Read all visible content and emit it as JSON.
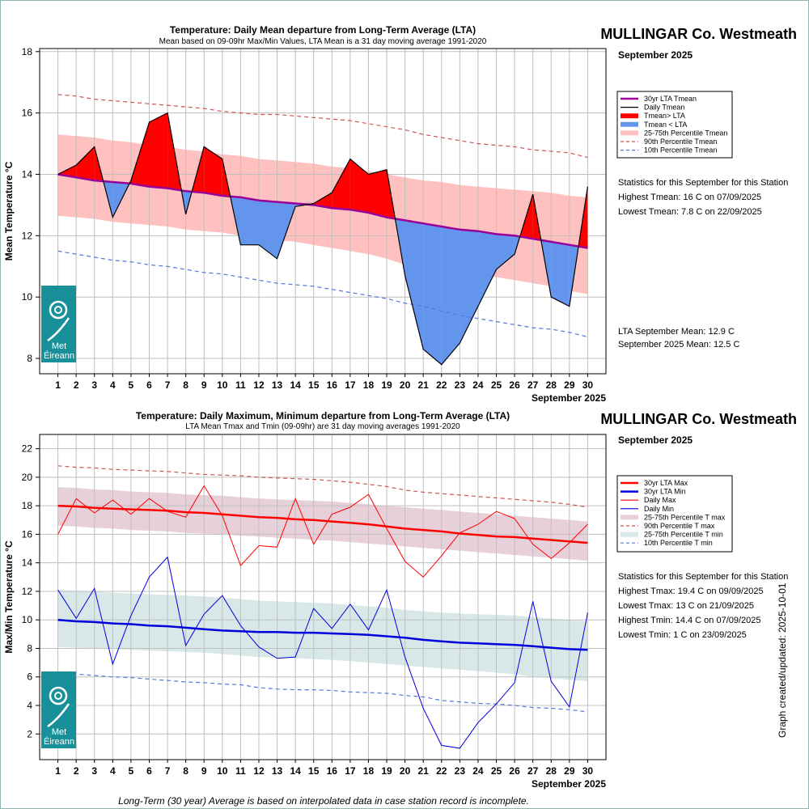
{
  "footer": {
    "note": "Long-Term (30 year) Average is based on interpolated data in case station record is incomplete.",
    "created": "Graph created/updated:  2025-10-01"
  },
  "logo": {
    "line1": "Met",
    "line2": "Éireann"
  },
  "chart_data": [
    {
      "type": "area",
      "title": "Temperature: Daily Mean departure from Long-Term Average (LTA)",
      "subtitle": "Mean based on 09-09hr Max/Min Values, LTA Mean is a 31 day moving average 1991-2020",
      "station": "MULLINGAR Co. Westmeath",
      "month": "September 2025",
      "xlabel": "September 2025",
      "ylabel": "Mean Temperature °C",
      "xlim": [
        0,
        31
      ],
      "ylim": [
        7.5,
        18.1
      ],
      "yticks": [
        8,
        10,
        12,
        14,
        16,
        18
      ],
      "grid": true,
      "x": [
        1,
        2,
        3,
        4,
        5,
        6,
        7,
        8,
        9,
        10,
        11,
        12,
        13,
        14,
        15,
        16,
        17,
        18,
        19,
        20,
        21,
        22,
        23,
        24,
        25,
        26,
        27,
        28,
        29,
        30
      ],
      "series": [
        {
          "name": "30yr LTA Tmean",
          "color": "#990099",
          "values": [
            14.0,
            13.9,
            13.8,
            13.75,
            13.7,
            13.6,
            13.55,
            13.45,
            13.4,
            13.3,
            13.25,
            13.15,
            13.1,
            13.05,
            13.0,
            12.9,
            12.85,
            12.75,
            12.6,
            12.5,
            12.4,
            12.3,
            12.2,
            12.15,
            12.05,
            12.0,
            11.9,
            11.8,
            11.7,
            11.6
          ]
        },
        {
          "name": "Daily Tmean",
          "color": "#000000",
          "values": [
            14.0,
            14.3,
            14.9,
            12.6,
            13.8,
            15.7,
            16.0,
            12.7,
            14.9,
            14.5,
            11.7,
            11.7,
            11.25,
            12.95,
            13.05,
            13.4,
            14.5,
            14.0,
            14.15,
            10.7,
            8.3,
            7.8,
            8.5,
            9.7,
            10.9,
            11.4,
            13.35,
            10.0,
            9.7,
            13.6
          ]
        },
        {
          "name": "Tmean> LTA",
          "color": "#ff0000"
        },
        {
          "name": "Tmean < LTA",
          "color": "#6495ed"
        },
        {
          "name": "25-75th Percentile Tmean",
          "color": "#ffc0c0",
          "lower": [
            12.65,
            12.6,
            12.55,
            12.45,
            12.4,
            12.35,
            12.3,
            12.2,
            12.15,
            12.1,
            12.0,
            11.95,
            11.85,
            11.8,
            11.7,
            11.6,
            11.5,
            11.4,
            11.25,
            11.05,
            10.95,
            10.85,
            10.8,
            10.75,
            10.65,
            10.55,
            10.45,
            10.35,
            10.2,
            10.1
          ],
          "upper": [
            15.3,
            15.25,
            15.2,
            15.1,
            15.05,
            14.95,
            14.9,
            14.8,
            14.75,
            14.65,
            14.6,
            14.5,
            14.45,
            14.4,
            14.35,
            14.25,
            14.2,
            14.1,
            14.0,
            13.9,
            13.8,
            13.75,
            13.65,
            13.6,
            13.55,
            13.5,
            13.45,
            13.4,
            13.3,
            13.25
          ]
        },
        {
          "name": "90th Percentile Tmean",
          "color": "#cc5555",
          "values": [
            16.6,
            16.55,
            16.45,
            16.4,
            16.35,
            16.3,
            16.25,
            16.2,
            16.15,
            16.05,
            16.0,
            15.95,
            15.95,
            15.9,
            15.85,
            15.8,
            15.75,
            15.65,
            15.55,
            15.45,
            15.3,
            15.2,
            15.1,
            15.0,
            14.95,
            14.9,
            14.8,
            14.75,
            14.7,
            14.55
          ]
        },
        {
          "name": "10th Percentile Tmean",
          "color": "#5577dd",
          "values": [
            11.5,
            11.4,
            11.3,
            11.2,
            11.15,
            11.05,
            11.0,
            10.9,
            10.8,
            10.75,
            10.65,
            10.55,
            10.45,
            10.4,
            10.35,
            10.25,
            10.15,
            10.05,
            9.95,
            9.8,
            9.7,
            9.55,
            9.4,
            9.3,
            9.2,
            9.1,
            9.0,
            8.95,
            8.85,
            8.7
          ]
        }
      ],
      "stats_heading": "Statistics for this September for this Station",
      "stats": [
        "Highest Tmean: 16 C on 07/09/2025",
        "Lowest Tmean: 7.8 C on 22/09/2025"
      ],
      "means": [
        "LTA September Mean: 12.9 C",
        "September 2025 Mean: 12.5 C"
      ]
    },
    {
      "type": "line",
      "title": "Temperature: Daily Maximum, Minimum departure from Long-Term Average (LTA)",
      "subtitle": "LTA Mean Tmax and Tmin (09-09hr) are 31 day moving averages 1991-2020",
      "station": "MULLINGAR Co. Westmeath",
      "month": "September 2025",
      "xlabel": "September 2025",
      "ylabel": "Max/Min Temperature °C",
      "xlim": [
        0,
        31
      ],
      "ylim": [
        0.2,
        23.0
      ],
      "yticks": [
        2,
        4,
        6,
        8,
        10,
        12,
        14,
        16,
        18,
        20,
        22
      ],
      "grid": true,
      "x": [
        1,
        2,
        3,
        4,
        5,
        6,
        7,
        8,
        9,
        10,
        11,
        12,
        13,
        14,
        15,
        16,
        17,
        18,
        19,
        20,
        21,
        22,
        23,
        24,
        25,
        26,
        27,
        28,
        29,
        30
      ],
      "series": [
        {
          "name": "30yr LTA Max",
          "color": "#ff0000",
          "values": [
            18.0,
            17.95,
            17.85,
            17.8,
            17.75,
            17.7,
            17.65,
            17.55,
            17.5,
            17.4,
            17.3,
            17.2,
            17.15,
            17.05,
            17.0,
            16.9,
            16.8,
            16.7,
            16.55,
            16.4,
            16.3,
            16.2,
            16.05,
            15.95,
            15.85,
            15.8,
            15.7,
            15.6,
            15.5,
            15.4
          ]
        },
        {
          "name": "30yr LTA Min",
          "color": "#0000dd",
          "values": [
            10.0,
            9.9,
            9.85,
            9.75,
            9.7,
            9.6,
            9.55,
            9.45,
            9.35,
            9.25,
            9.2,
            9.15,
            9.15,
            9.1,
            9.1,
            9.05,
            9.0,
            8.95,
            8.85,
            8.75,
            8.6,
            8.5,
            8.4,
            8.35,
            8.3,
            8.25,
            8.15,
            8.05,
            7.95,
            7.9
          ]
        },
        {
          "name": "Daily Max",
          "color": "#ff0000",
          "values": [
            16.0,
            18.5,
            17.5,
            18.4,
            17.4,
            18.5,
            17.6,
            17.2,
            19.4,
            17.3,
            13.8,
            15.2,
            15.1,
            18.5,
            15.3,
            17.4,
            17.9,
            18.8,
            16.4,
            14.1,
            13.0,
            14.5,
            16.1,
            16.7,
            17.6,
            17.1,
            15.3,
            14.3,
            15.4,
            16.7
          ]
        },
        {
          "name": "Daily Min",
          "color": "#0000dd",
          "values": [
            12.1,
            10.1,
            12.2,
            6.9,
            10.3,
            13.0,
            14.4,
            8.2,
            10.4,
            11.7,
            9.6,
            8.1,
            7.3,
            7.4,
            10.8,
            9.4,
            11.1,
            9.3,
            12.1,
            7.4,
            3.8,
            1.2,
            1.0,
            2.8,
            4.1,
            5.6,
            11.3,
            5.7,
            3.9,
            10.5
          ]
        },
        {
          "name": "25-75th Percentile T max",
          "color": "#e8d0da",
          "lower": [
            16.6,
            16.55,
            16.45,
            16.4,
            16.3,
            16.25,
            16.2,
            16.1,
            16.05,
            16.0,
            15.9,
            15.85,
            15.75,
            15.7,
            15.6,
            15.55,
            15.45,
            15.35,
            15.25,
            15.15,
            15.05,
            14.95,
            14.85,
            14.75,
            14.65,
            14.55,
            14.45,
            14.35,
            14.25,
            14.15
          ],
          "upper": [
            19.3,
            19.25,
            19.15,
            19.1,
            19.0,
            18.95,
            18.9,
            18.8,
            18.75,
            18.7,
            18.6,
            18.5,
            18.45,
            18.4,
            18.35,
            18.3,
            18.2,
            18.1,
            18.0,
            17.9,
            17.8,
            17.7,
            17.6,
            17.5,
            17.4,
            17.3,
            17.2,
            17.1,
            17.0,
            16.9
          ]
        },
        {
          "name": "90th Percentile T max",
          "color": "#cc5555",
          "values": [
            20.8,
            20.7,
            20.65,
            20.55,
            20.5,
            20.45,
            20.4,
            20.3,
            20.2,
            20.15,
            20.1,
            20.0,
            19.95,
            19.9,
            19.85,
            19.75,
            19.65,
            19.5,
            19.35,
            19.1,
            18.95,
            18.85,
            18.75,
            18.65,
            18.55,
            18.45,
            18.35,
            18.25,
            18.1,
            17.9
          ]
        },
        {
          "name": "25-75th Percentile T min",
          "color": "#d8e8e8",
          "lower": [
            8.1,
            8.05,
            8.0,
            7.95,
            7.9,
            7.85,
            7.8,
            7.75,
            7.7,
            7.6,
            7.5,
            7.4,
            7.35,
            7.3,
            7.25,
            7.2,
            7.1,
            7.0,
            6.9,
            6.8,
            6.7,
            6.6,
            6.5,
            6.4,
            6.3,
            6.2,
            6.0,
            5.9,
            5.8,
            5.7
          ],
          "upper": [
            12.1,
            12.05,
            12.0,
            11.9,
            11.85,
            11.8,
            11.75,
            11.7,
            11.65,
            11.55,
            11.45,
            11.35,
            11.3,
            11.25,
            11.2,
            11.15,
            11.05,
            10.95,
            10.85,
            10.7,
            10.6,
            10.5,
            10.45,
            10.4,
            10.35,
            10.3,
            10.2,
            10.1,
            10.0,
            9.9
          ]
        },
        {
          "name": "10th Percentile T min",
          "color": "#5577dd",
          "values": [
            6.3,
            6.2,
            6.1,
            6.0,
            5.95,
            5.85,
            5.75,
            5.65,
            5.6,
            5.5,
            5.45,
            5.25,
            5.15,
            5.1,
            5.1,
            5.05,
            4.95,
            4.9,
            4.85,
            4.7,
            4.6,
            4.35,
            4.25,
            4.15,
            4.1,
            4.0,
            3.85,
            3.8,
            3.7,
            3.55
          ]
        }
      ],
      "stats_heading": "Statistics for this September for this Station",
      "stats": [
        "Highest Tmax: 19.4 C on 09/09/2025",
        "Lowest Tmax: 13 C on 21/09/2025",
        "Highest Tmin: 14.4 C on 07/09/2025",
        "Lowest Tmin: 1 C on 23/09/2025"
      ]
    }
  ]
}
